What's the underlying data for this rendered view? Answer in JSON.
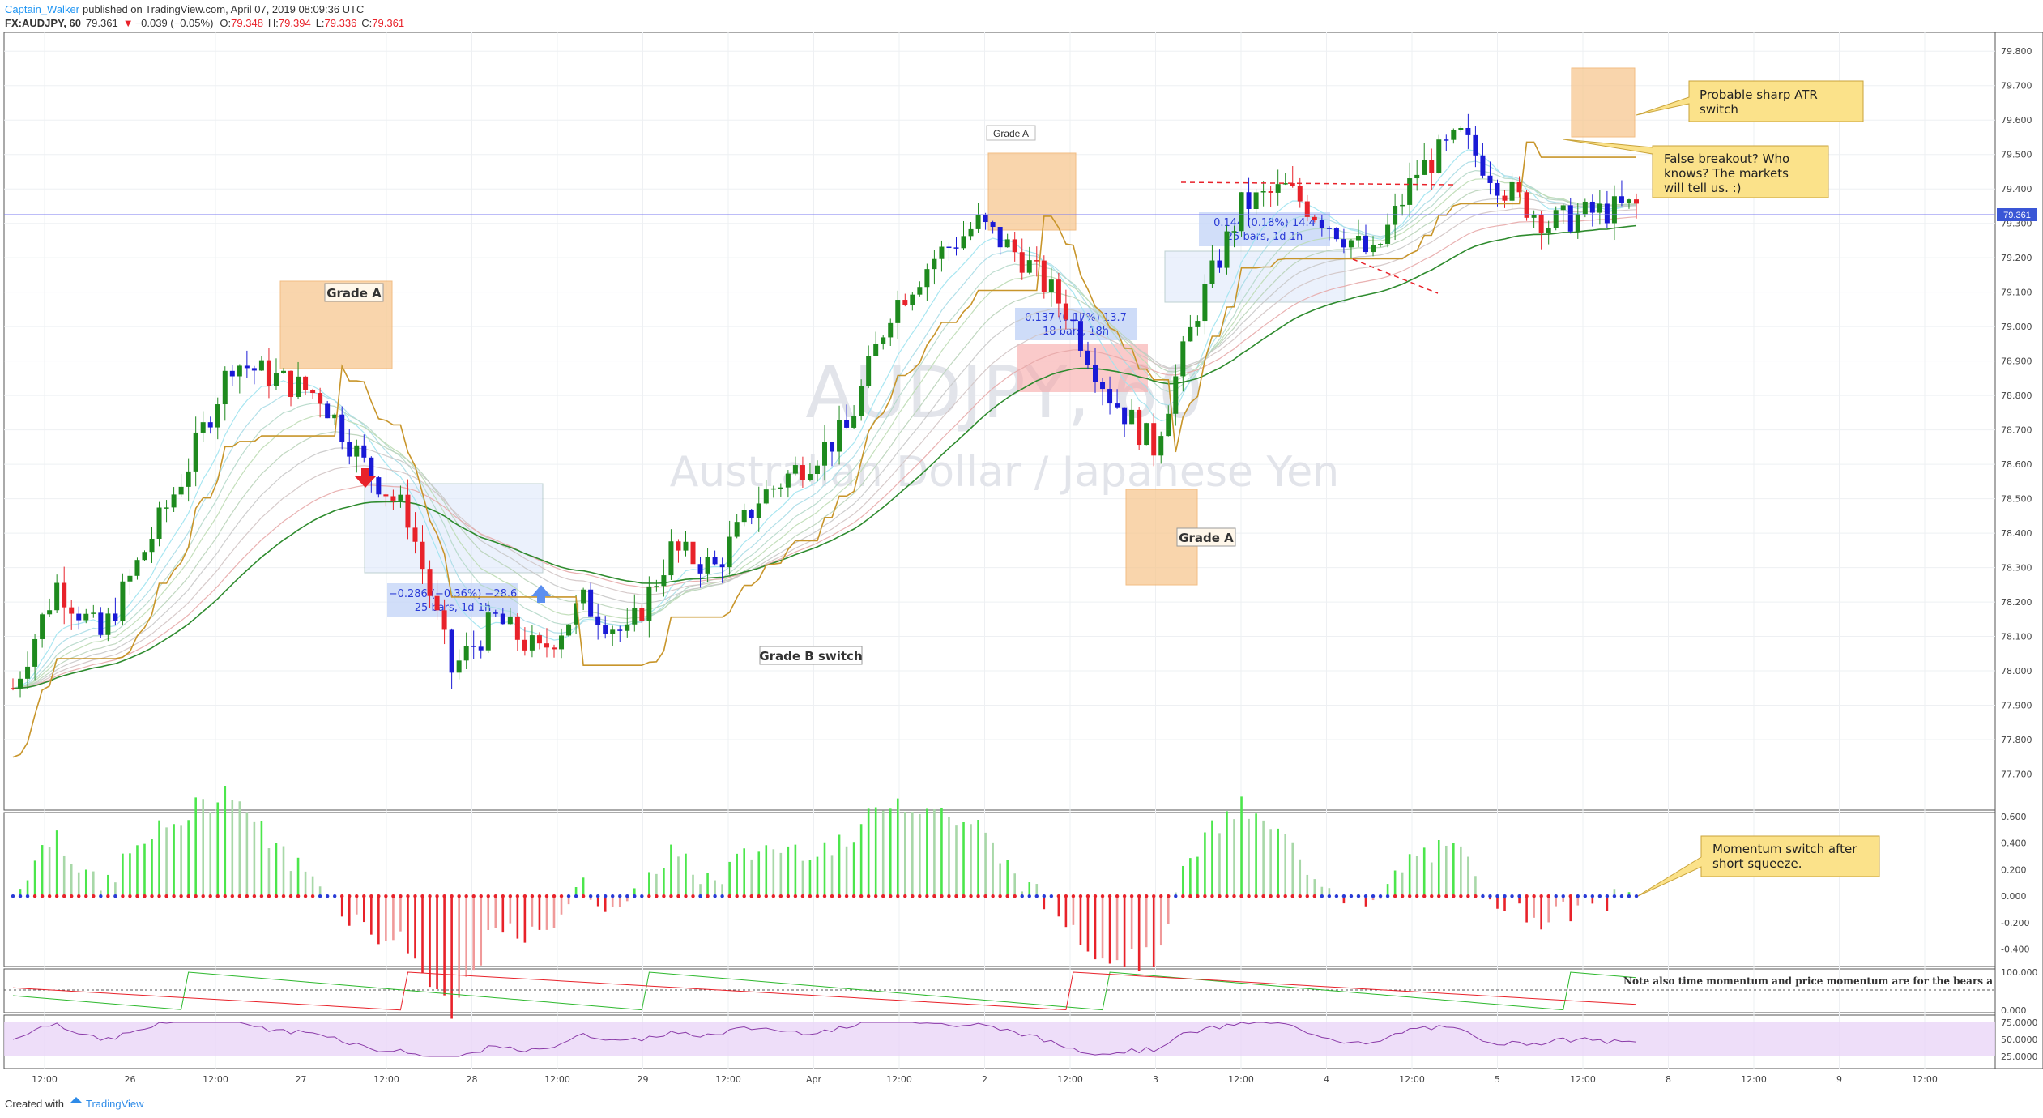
{
  "header": {
    "author": "Captain_Walker",
    "published": "published on TradingView.com, April 07, 2019 08:09:36 UTC",
    "symbol": "FX:AUDJPY, 60",
    "last": "79.361",
    "change_arrow": "▼",
    "change": "−0.039 (−0.05%)",
    "o_label": "O:",
    "o_value": "79.348",
    "h_label": "H:",
    "h_value": "79.394",
    "l_label": "L:",
    "l_value": "79.336",
    "c_label": "C:",
    "c_value": "79.361"
  },
  "watermark": {
    "ticker": "AUDJPY, 60",
    "name": "Australian Dollar / Japanese Yen"
  },
  "footer": {
    "created_with": "Created with",
    "brand": "TradingView"
  },
  "colors": {
    "bull": "#1e8a1e",
    "bear_red": "#e8222a",
    "bear_blue": "#1a1ad6",
    "atr_stop": "#c8952a",
    "annotation_box": "#fbe28a",
    "zone": "#f7c891",
    "rsi_band": "#ead6f7"
  },
  "annotations": {
    "grade_a_1": "Grade A",
    "grade_a_2": "Grade A",
    "grade_a_3": "Grade A",
    "grade_b_switch": "Grade B switch",
    "atr_note_1": "Probable sharp ATR",
    "atr_note_2": "switch",
    "false_breakout_1": "False breakout? Who",
    "false_breakout_2": "knows? The markets",
    "false_breakout_3": "will tell us. :)",
    "momentum_note_1": "Momentum switch after",
    "momentum_note_2": "short squeeze.",
    "time_momentum_note": "Note also time momentum and price momentum are for the bears a"
  },
  "measures": {
    "m1_line1": "−0.286 (−0.36%) −28.6",
    "m1_line2": "25 bars, 1d 1h",
    "m2_line1": "0.137 (0.17%) 13.7",
    "m2_line2": "18 bars, 18h",
    "m3_line1": "0.144 (0.18%) 14.4",
    "m3_line2": "25 bars, 1d 1h"
  },
  "chart_data": {
    "type": "candlestick",
    "symbol": "FX:AUDJPY",
    "timeframe": "60",
    "ylim": [
      77.6,
      79.85
    ],
    "price_ticks": [
      "79.800",
      "79.700",
      "79.600",
      "79.500",
      "79.400",
      "79.300",
      "79.200",
      "79.100",
      "79.000",
      "78.900",
      "78.800",
      "78.700",
      "78.600",
      "78.500",
      "78.400",
      "78.300",
      "78.200",
      "78.100",
      "78.000",
      "77.900",
      "77.800",
      "77.700"
    ],
    "current_price": "79.361",
    "time_ticks": [
      "12:00",
      "26",
      "12:00",
      "27",
      "12:00",
      "28",
      "12:00",
      "29",
      "12:00",
      "Apr",
      "12:00",
      "2",
      "12:00",
      "3",
      "12:00",
      "4",
      "12:00",
      "5",
      "12:00",
      "8",
      "12:00",
      "9",
      "12:00"
    ],
    "close_path": [
      [
        0,
        77.95
      ],
      [
        6,
        78.25
      ],
      [
        12,
        78.1
      ],
      [
        18,
        78.35
      ],
      [
        24,
        78.6
      ],
      [
        30,
        78.9
      ],
      [
        36,
        78.85
      ],
      [
        42,
        78.8
      ],
      [
        48,
        78.6
      ],
      [
        54,
        78.45
      ],
      [
        60,
        78.0
      ],
      [
        66,
        78.15
      ],
      [
        72,
        78.05
      ],
      [
        78,
        78.2
      ],
      [
        84,
        78.1
      ],
      [
        90,
        78.35
      ],
      [
        96,
        78.3
      ],
      [
        102,
        78.5
      ],
      [
        108,
        78.6
      ],
      [
        114,
        78.7
      ],
      [
        120,
        79.05
      ],
      [
        126,
        79.2
      ],
      [
        132,
        79.3
      ],
      [
        138,
        79.2
      ],
      [
        144,
        79.05
      ],
      [
        150,
        78.8
      ],
      [
        156,
        78.65
      ],
      [
        162,
        79.05
      ],
      [
        168,
        79.35
      ],
      [
        174,
        79.4
      ],
      [
        180,
        79.3
      ],
      [
        186,
        79.2
      ],
      [
        192,
        79.45
      ],
      [
        198,
        79.55
      ],
      [
        204,
        79.4
      ],
      [
        210,
        79.3
      ],
      [
        216,
        79.33
      ],
      [
        222,
        79.35
      ]
    ],
    "momentum_ylim": [
      -0.5,
      0.6
    ],
    "momentum_ticks": [
      "0.600",
      "0.400",
      "0.200",
      "0.000",
      "-0.200",
      "-0.400"
    ],
    "time_momentum_ticks": [
      "100.000",
      "0.000"
    ],
    "rsi_ticks": [
      "75.0000",
      "50.0000",
      "25.0000"
    ]
  }
}
